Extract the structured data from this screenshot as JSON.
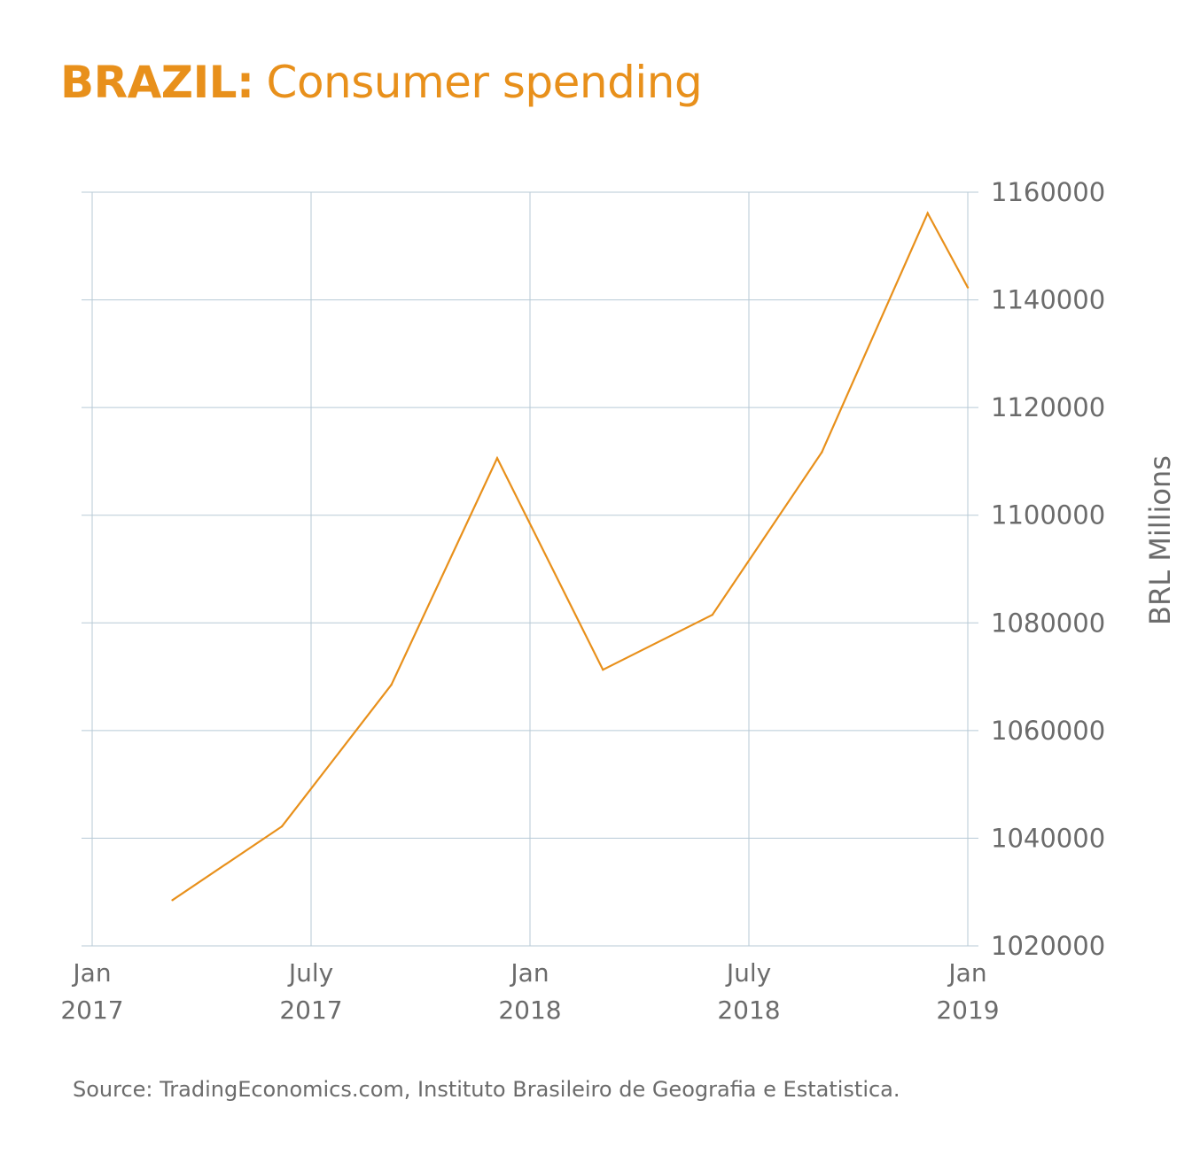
{
  "title": {
    "country": "BRAZIL:",
    "subject": "Consumer spending"
  },
  "source": "Source: TradingEconomics.com, Instituto Brasileiro de Geografia e Estatistica.",
  "colors": {
    "accent": "#e8901b",
    "grid": "#b7cad6",
    "text": "#6b6b6b"
  },
  "chart_data": {
    "type": "line",
    "title": "BRAZIL: Consumer spending",
    "ylabel": "BRL Millions",
    "xlabel": "",
    "ylim": [
      1020000,
      1160000
    ],
    "yticks": [
      1160000,
      1140000,
      1120000,
      1100000,
      1080000,
      1060000,
      1040000,
      1020000
    ],
    "xlim": [
      0,
      24
    ],
    "xticks": [
      {
        "month": 0,
        "line1": "Jan",
        "line2": "2017"
      },
      {
        "month": 6,
        "line1": "July",
        "line2": "2017"
      },
      {
        "month": 12,
        "line1": "Jan",
        "line2": "2018"
      },
      {
        "month": 18,
        "line1": "July",
        "line2": "2018"
      },
      {
        "month": 24,
        "line1": "Jan",
        "line2": "2019"
      }
    ],
    "grid": true,
    "series": [
      {
        "name": "Consumer spending",
        "x": [
          2.2,
          5.2,
          8.2,
          11.1,
          14.0,
          17.0,
          20.0,
          22.9,
          24.0
        ],
        "values": [
          1028500,
          1042200,
          1068500,
          1110600,
          1071300,
          1081500,
          1111700,
          1156100,
          1142300
        ]
      }
    ]
  }
}
